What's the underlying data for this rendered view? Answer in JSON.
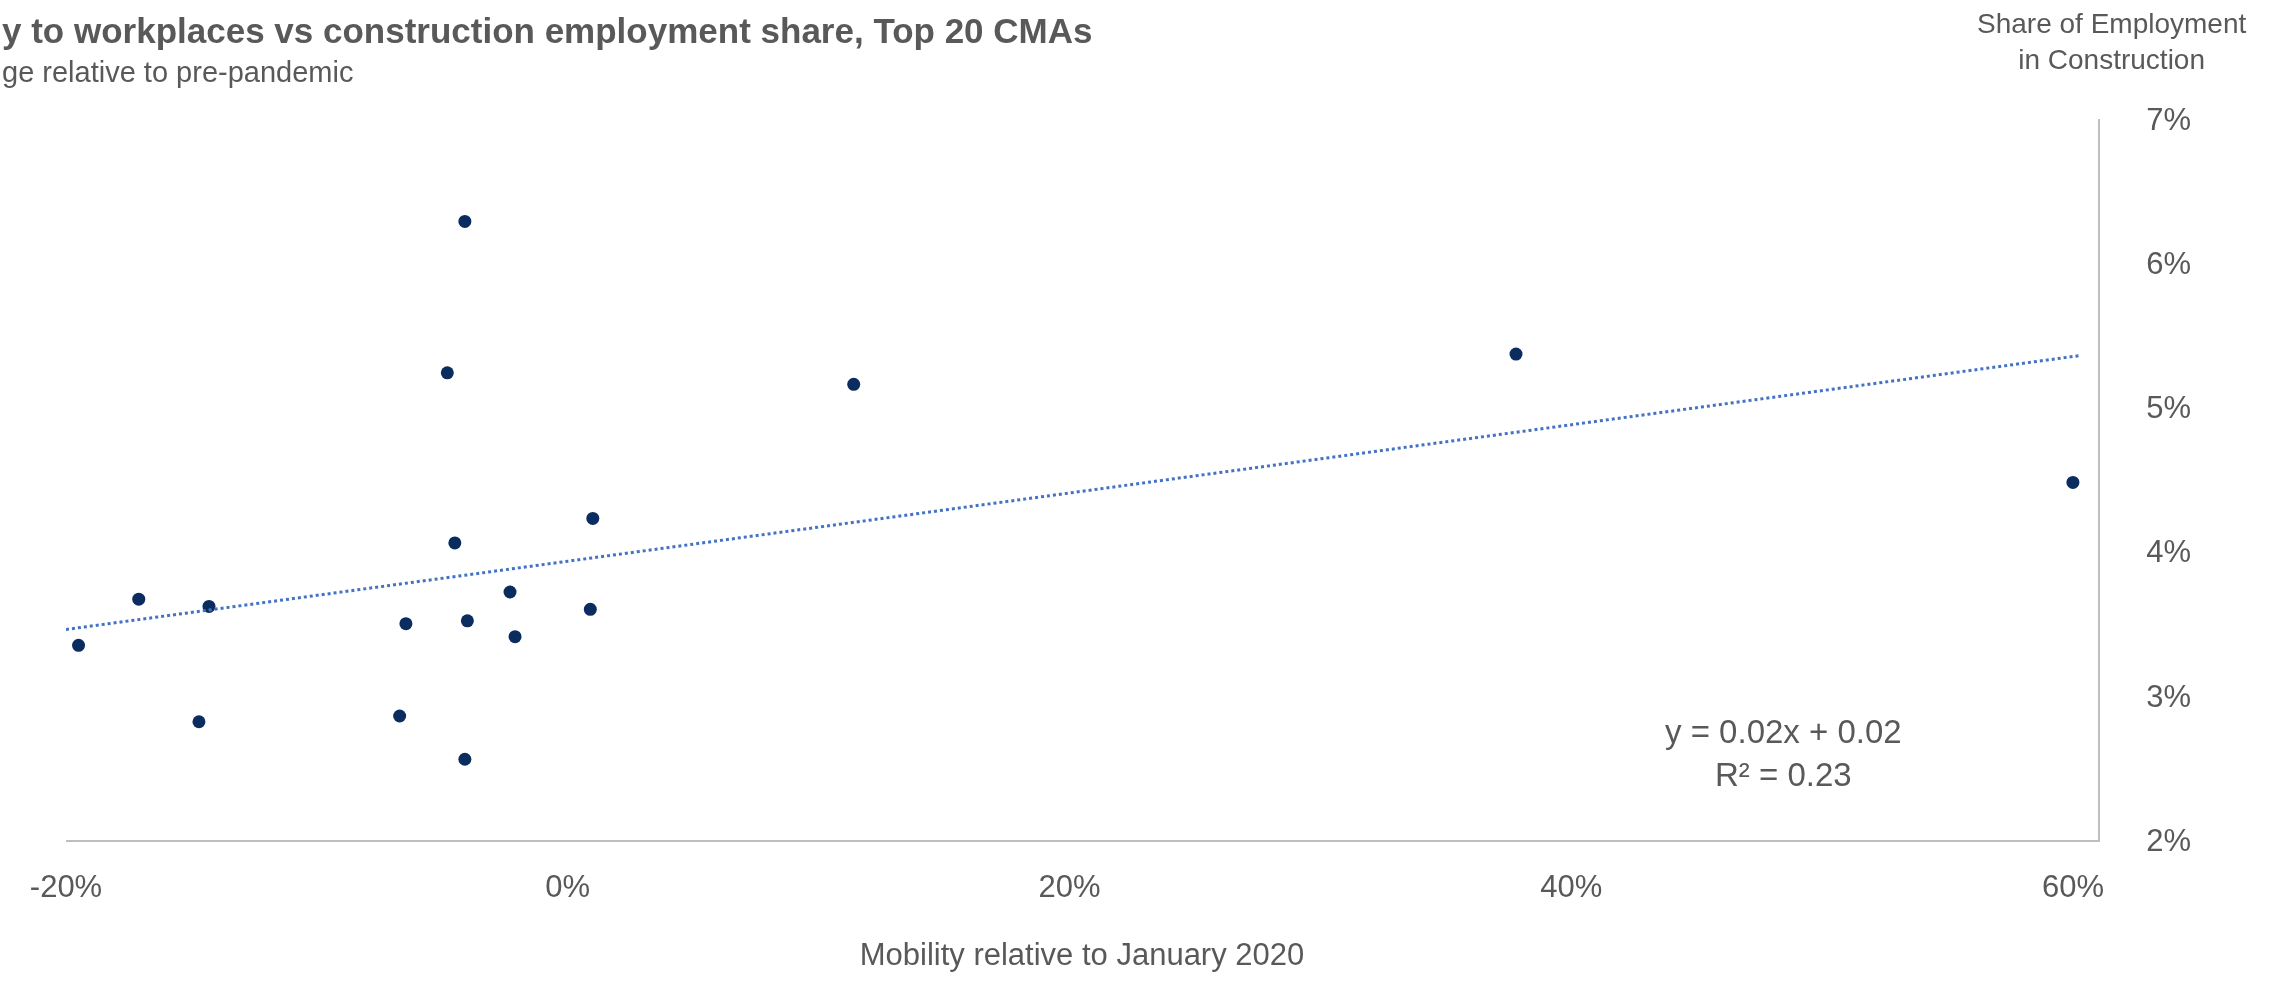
{
  "chart_data": {
    "type": "scatter",
    "title": "y to workplaces vs construction employment share, Top 20 CMAs",
    "subtitle": "ge relative to pre-pandemic",
    "xlabel": "Mobility relative to January 2020",
    "ylabel": "Share of Employment\nin Construction",
    "x": [
      -19.5,
      -17.1,
      -14.3,
      -14.7,
      -6.45,
      -6.7,
      -4.8,
      -4.1,
      -4.5,
      -4.0,
      -4.1,
      -2.3,
      -2.1,
      0.9,
      1.0,
      11.4,
      37.8,
      60.0
    ],
    "series": [
      {
        "color": "#0b2c5f",
        "marker": "circle",
        "values": [
          3.35,
          3.67,
          3.62,
          2.82,
          3.5,
          2.86,
          5.24,
          6.29,
          4.06,
          3.52,
          2.56,
          3.72,
          3.41,
          3.6,
          4.23,
          5.16,
          5.37,
          4.48
        ]
      },
      {
        "type": "line",
        "color": "#4472c4",
        "line_style": "dotted",
        "x": [
          -20,
          60.3
        ],
        "values": [
          3.46,
          5.36
        ]
      }
    ],
    "annotations": [
      "y = 0.02x + 0.02\nR² = 0.23"
    ],
    "xlim": [
      -20,
      61
    ],
    "ylim": [
      2,
      7
    ],
    "xticks": [
      {
        "value": -20,
        "label": "-20%"
      },
      {
        "value": 0,
        "label": "0%"
      },
      {
        "value": 20,
        "label": "20%"
      },
      {
        "value": 40,
        "label": "40%"
      },
      {
        "value": 60,
        "label": "60%"
      }
    ],
    "yticks": [
      {
        "value": 2,
        "label": "2%"
      },
      {
        "value": 3,
        "label": "3%"
      },
      {
        "value": 4,
        "label": "4%"
      },
      {
        "value": 5,
        "label": "5%"
      },
      {
        "value": 6,
        "label": "6%"
      },
      {
        "value": 7,
        "label": "7%"
      }
    ]
  }
}
